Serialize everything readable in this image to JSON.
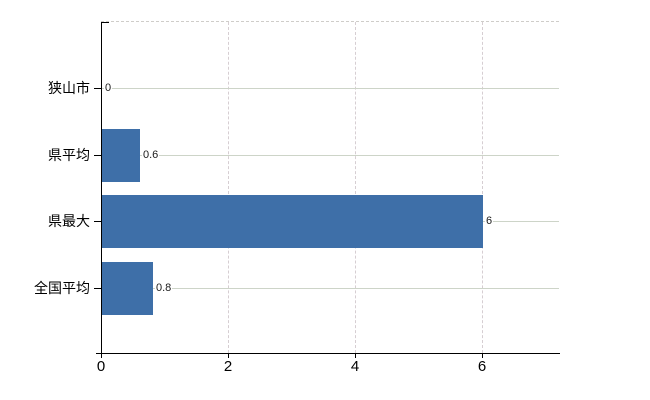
{
  "chart_data": {
    "type": "bar",
    "orientation": "horizontal",
    "title": "",
    "xlabel": "",
    "ylabel": "",
    "categories": [
      "狭山市",
      "県平均",
      "県最大",
      "全国平均"
    ],
    "values": [
      0,
      0.6,
      6,
      0.8
    ],
    "value_labels": [
      "0",
      "0.6",
      "6",
      "0.8"
    ],
    "xticks": [
      0,
      2,
      4,
      6
    ],
    "xtick_labels": [
      "0",
      "2",
      "4",
      "6"
    ],
    "xlim": [
      0,
      7.23
    ],
    "grid": true,
    "legend": false,
    "colors": {
      "bar": "#3E6FA8",
      "axis": "#000000",
      "h_gridline": "#cdd4c8",
      "v_gridline": "#d6ced2",
      "top_border": "#cfcdc9",
      "category_text": "#000000",
      "value_text": "#1a1a1a",
      "background": "#ffffff"
    }
  }
}
